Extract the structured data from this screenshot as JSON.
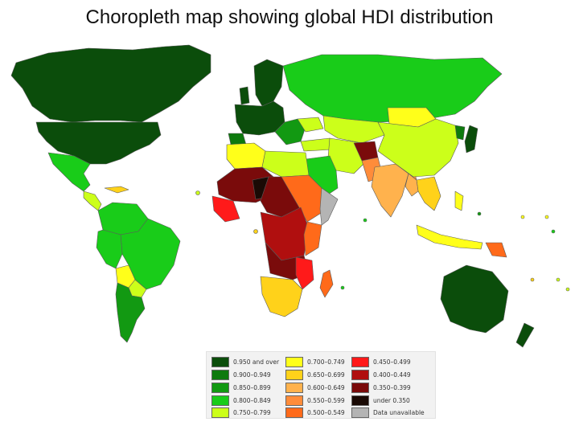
{
  "slide": {
    "title": "Choropleth map showing global HDI distribution"
  },
  "map": {
    "subject": "Human Development Index",
    "projection": "world political map",
    "colors": {
      "ocean": "#ffffff",
      "border": "#5a5a5a"
    }
  },
  "legend": {
    "columns": [
      [
        {
          "label": "0.950 and over",
          "color": "#0b4d0b"
        },
        {
          "label": "0.900–0.949",
          "color": "#0e7a0e"
        },
        {
          "label": "0.850–0.899",
          "color": "#129912"
        },
        {
          "label": "0.800–0.849",
          "color": "#19cc19"
        },
        {
          "label": "0.750–0.799",
          "color": "#ccff1a"
        }
      ],
      [
        {
          "label": "0.700–0.749",
          "color": "#ffff1a"
        },
        {
          "label": "0.650–0.699",
          "color": "#ffd21a"
        },
        {
          "label": "0.600–0.649",
          "color": "#ffb24d"
        },
        {
          "label": "0.550–0.599",
          "color": "#ff8c3a"
        },
        {
          "label": "0.500–0.549",
          "color": "#ff6a1a"
        }
      ],
      [
        {
          "label": "0.450–0.499",
          "color": "#ff1a1a"
        },
        {
          "label": "0.400–0.449",
          "color": "#b00f0f"
        },
        {
          "label": "0.350–0.399",
          "color": "#7a0b0b"
        },
        {
          "label": "under 0.350",
          "color": "#1a0a05"
        },
        {
          "label": "Data unavailable",
          "color": "#b4b4b4"
        }
      ]
    ]
  }
}
